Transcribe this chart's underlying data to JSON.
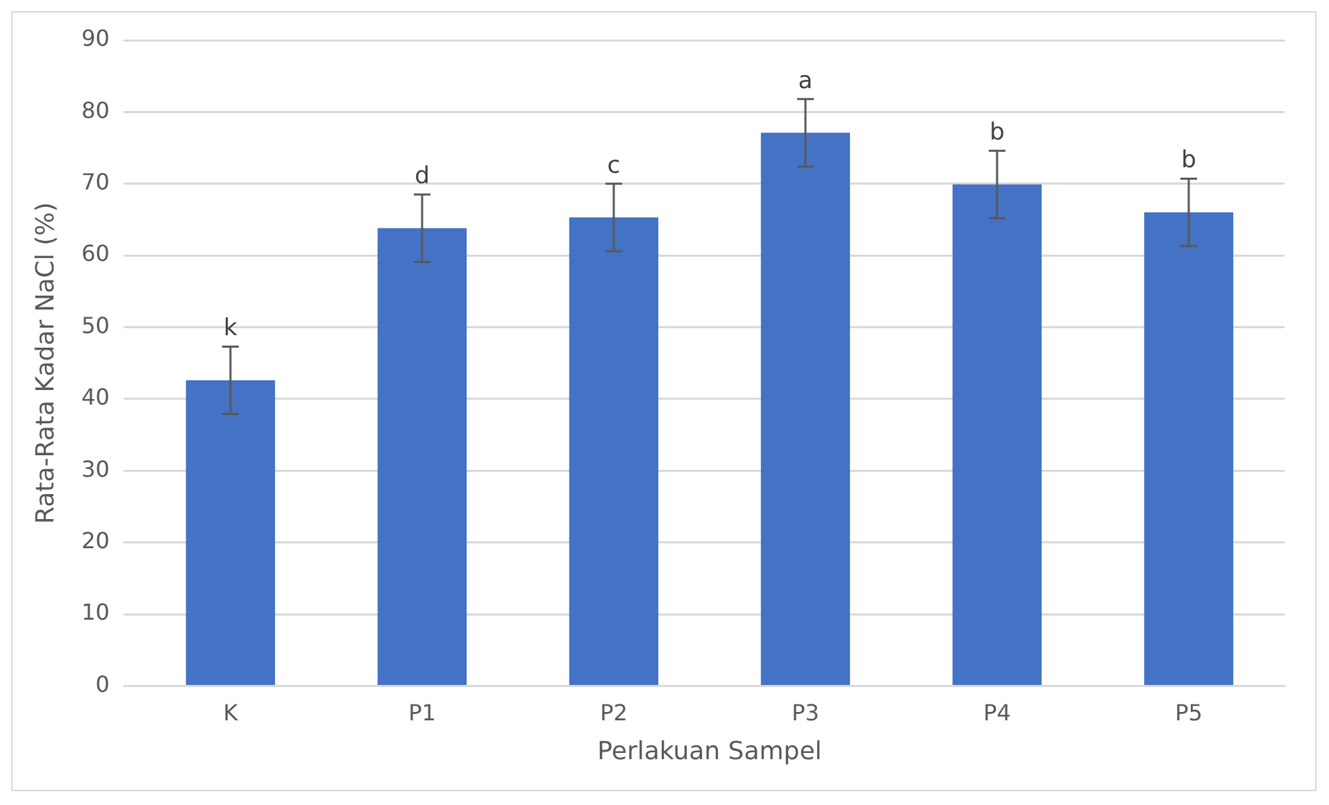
{
  "chart_data": {
    "type": "bar",
    "xlabel": "Perlakuan Sampel",
    "ylabel": "Rata-Rata Kadar NaCl (%)",
    "categories": [
      "K",
      "P1",
      "P2",
      "P3",
      "P4",
      "P5"
    ],
    "values": [
      42.6,
      63.8,
      65.3,
      77.1,
      69.9,
      66.0
    ],
    "errors": [
      4.7,
      4.7,
      4.7,
      4.7,
      4.7,
      4.7
    ],
    "color": "#4472c4",
    "ylim": [
      0,
      90
    ],
    "yticks": [
      0,
      10,
      20,
      30,
      40,
      50,
      60,
      70,
      80,
      90
    ],
    "grid": "y",
    "annotations": [
      {
        "text": "k",
        "x": "K",
        "y": 47.3
      },
      {
        "text": "d",
        "x": "P1",
        "y": 68.5
      },
      {
        "text": "c",
        "x": "P2",
        "y": 70.0
      },
      {
        "text": "a",
        "x": "P3",
        "y": 81.8
      },
      {
        "text": "b",
        "x": "P4",
        "y": 74.6
      },
      {
        "text": "b",
        "x": "P5",
        "y": 70.7
      }
    ]
  }
}
